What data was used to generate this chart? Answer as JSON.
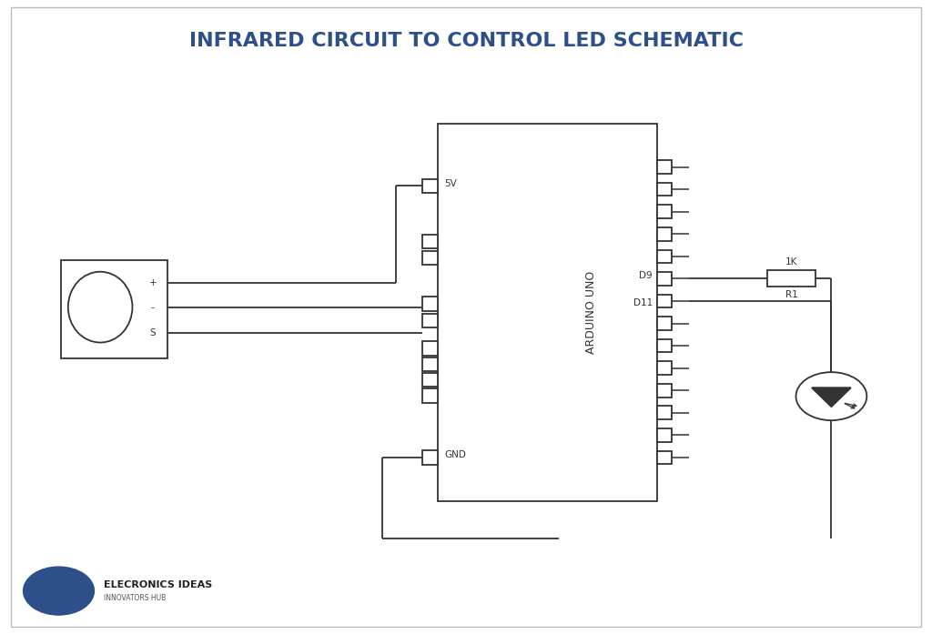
{
  "title": "INFRARED CIRCUIT TO CONTROL LED SCHEMATIC",
  "title_color": "#2d4f8a",
  "title_fontsize": 16,
  "bg_color": "#ffffff",
  "line_color": "#333333",
  "line_width": 1.3,
  "logo_text1": "ELECRONICS IDEAS",
  "logo_text2": "INNOVATORS HUB",
  "logo_circle_color": "#2d4f8a",
  "resistor_label": "1K",
  "resistor_name": "R1",
  "pin_5v_label": "5V",
  "pin_gnd_label": "GND",
  "pin_d9_label": "D9",
  "pin_d11_label": "D11",
  "arduino_label": "ARDUINO UNO",
  "ir_plus": "+",
  "ir_minus": "-",
  "ir_signal": "S",
  "border_color": "#cccccc"
}
